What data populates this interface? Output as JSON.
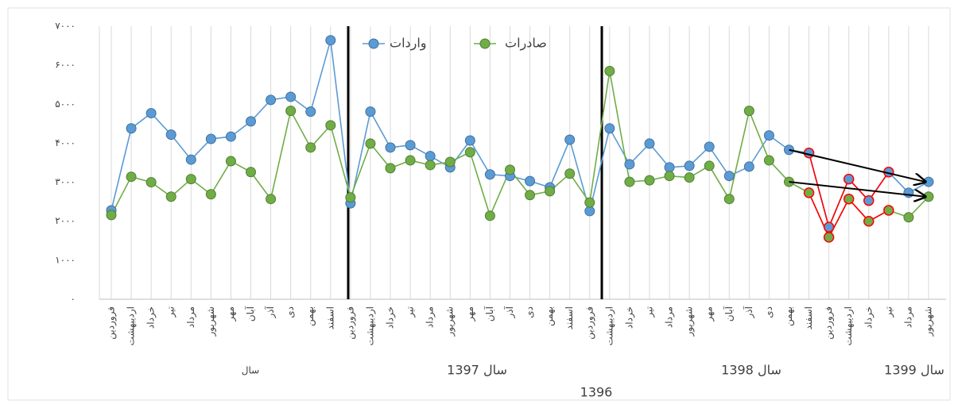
{
  "chart_data": {
    "type": "line",
    "categories": [
      "فروردین",
      "اردیبهشت",
      "خرداد",
      "تیر",
      "مرداد",
      "شهریور",
      "مهر",
      "آبان",
      "آذر",
      "دی",
      "بهمن",
      "اسفند",
      "فروردین",
      "اردیبهشت",
      "خرداد",
      "تیر",
      "مرداد",
      "شهریور",
      "مهر",
      "آبان",
      "آذر",
      "دی",
      "بهمن",
      "اسفند",
      "فروردین",
      "اردیبهشت",
      "خرداد",
      "تیر",
      "مرداد",
      "شهریور",
      "مهر",
      "آبان",
      "آذر",
      "دی",
      "بهمن",
      "اسفند",
      "فروردین",
      "اردیبهشت",
      "خرداد",
      "تیر",
      "مرداد",
      "شهریور"
    ],
    "group_labels": [
      "سال",
      "1396",
      "سال 1397",
      "سال 1398",
      "سال 1399"
    ],
    "series": [
      {
        "name": "واردات",
        "color": "#5b9bd5",
        "values": [
          2280,
          4380,
          4770,
          4220,
          3580,
          4110,
          4170,
          4560,
          5110,
          5190,
          4810,
          6640,
          2460,
          4810,
          3890,
          3950,
          3670,
          3380,
          4070,
          3200,
          3160,
          3030,
          2870,
          4090,
          2260,
          4380,
          3460,
          3990,
          3380,
          3420,
          3910,
          3160,
          3400,
          4200,
          3830,
          3750,
          1850,
          3080,
          2530,
          3260,
          2730,
          3010
        ]
      },
      {
        "name": "صادرات",
        "color": "#70ad47",
        "values": [
          2160,
          3140,
          3000,
          2630,
          3080,
          2690,
          3540,
          3260,
          2570,
          4830,
          3890,
          4460,
          2610,
          3990,
          3360,
          3560,
          3440,
          3520,
          3770,
          2140,
          3320,
          2670,
          2770,
          3220,
          2480,
          5850,
          3010,
          3050,
          3160,
          3120,
          3420,
          2570,
          4830,
          3560,
          3010,
          2730,
          1590,
          2570,
          2000,
          2280,
          2100,
          2630
        ]
      }
    ],
    "highlight_color": "#ff0000",
    "ylim": [
      0,
      7000
    ],
    "yticks": [
      {
        "value": 0,
        "label": "۰"
      },
      {
        "value": 1000,
        "label": "۱۰۰۰"
      },
      {
        "value": 2000,
        "label": "۲۰۰۰"
      },
      {
        "value": 3000,
        "label": "۳۰۰۰"
      },
      {
        "value": 4000,
        "label": "۴۰۰۰"
      },
      {
        "value": 5000,
        "label": "۵۰۰۰"
      },
      {
        "value": 6000,
        "label": "۶۰۰۰"
      },
      {
        "value": 7000,
        "label": "۷۰۰۰"
      }
    ],
    "grid": true
  }
}
